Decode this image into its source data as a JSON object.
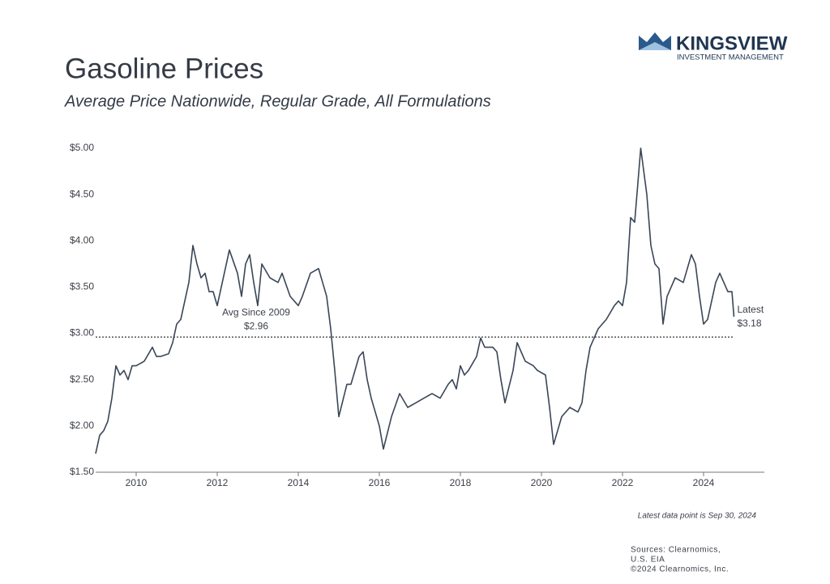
{
  "logo": {
    "name": "KINGSVIEW",
    "tagline": "INVESTMENT MANAGEMENT"
  },
  "chart_data": {
    "type": "line",
    "title": "Gasoline Prices",
    "subtitle": "Average Price Nationwide, Regular Grade, All Formulations",
    "color": "#3a4657",
    "x": [
      2009.0,
      2009.1,
      2009.2,
      2009.3,
      2009.4,
      2009.5,
      2009.6,
      2009.7,
      2009.8,
      2009.9,
      2010.0,
      2010.2,
      2010.4,
      2010.5,
      2010.6,
      2010.8,
      2010.9,
      2011.0,
      2011.1,
      2011.3,
      2011.4,
      2011.5,
      2011.6,
      2011.7,
      2011.8,
      2011.9,
      2012.0,
      2012.1,
      2012.3,
      2012.5,
      2012.6,
      2012.7,
      2012.8,
      2012.9,
      2013.0,
      2013.1,
      2013.3,
      2013.5,
      2013.6,
      2013.8,
      2014.0,
      2014.1,
      2014.3,
      2014.5,
      2014.6,
      2014.7,
      2014.8,
      2014.9,
      2015.0,
      2015.2,
      2015.3,
      2015.5,
      2015.6,
      2015.7,
      2015.8,
      2016.0,
      2016.1,
      2016.3,
      2016.5,
      2016.7,
      2016.9,
      2017.1,
      2017.3,
      2017.5,
      2017.7,
      2017.8,
      2017.9,
      2018.0,
      2018.1,
      2018.2,
      2018.4,
      2018.5,
      2018.6,
      2018.8,
      2018.9,
      2019.0,
      2019.1,
      2019.3,
      2019.4,
      2019.6,
      2019.8,
      2019.9,
      2020.1,
      2020.2,
      2020.3,
      2020.5,
      2020.7,
      2020.9,
      2021.0,
      2021.1,
      2021.2,
      2021.4,
      2021.6,
      2021.8,
      2021.9,
      2022.0,
      2022.1,
      2022.2,
      2022.3,
      2022.45,
      2022.6,
      2022.7,
      2022.8,
      2022.9,
      2023.0,
      2023.1,
      2023.2,
      2023.3,
      2023.5,
      2023.7,
      2023.8,
      2023.9,
      2024.0,
      2024.1,
      2024.3,
      2024.4,
      2024.6,
      2024.7,
      2024.75
    ],
    "values": [
      1.7,
      1.9,
      1.95,
      2.05,
      2.3,
      2.65,
      2.55,
      2.6,
      2.5,
      2.65,
      2.65,
      2.7,
      2.85,
      2.75,
      2.75,
      2.78,
      2.9,
      3.1,
      3.15,
      3.55,
      3.95,
      3.75,
      3.6,
      3.65,
      3.45,
      3.45,
      3.3,
      3.5,
      3.9,
      3.65,
      3.4,
      3.75,
      3.85,
      3.55,
      3.3,
      3.75,
      3.6,
      3.55,
      3.65,
      3.4,
      3.3,
      3.4,
      3.65,
      3.7,
      3.55,
      3.4,
      3.05,
      2.6,
      2.1,
      2.45,
      2.45,
      2.75,
      2.8,
      2.5,
      2.3,
      2.0,
      1.75,
      2.1,
      2.35,
      2.2,
      2.25,
      2.3,
      2.35,
      2.3,
      2.45,
      2.5,
      2.4,
      2.65,
      2.55,
      2.6,
      2.75,
      2.95,
      2.85,
      2.85,
      2.8,
      2.5,
      2.25,
      2.6,
      2.9,
      2.7,
      2.65,
      2.6,
      2.55,
      2.2,
      1.8,
      2.1,
      2.2,
      2.15,
      2.25,
      2.6,
      2.85,
      3.05,
      3.15,
      3.3,
      3.35,
      3.3,
      3.55,
      4.25,
      4.2,
      5.0,
      4.5,
      3.95,
      3.75,
      3.7,
      3.1,
      3.4,
      3.5,
      3.6,
      3.55,
      3.85,
      3.75,
      3.4,
      3.1,
      3.15,
      3.55,
      3.65,
      3.45,
      3.45,
      3.18
    ],
    "xlim": [
      2009,
      2025.5
    ],
    "xticks": [
      2010,
      2012,
      2014,
      2016,
      2018,
      2020,
      2022,
      2024
    ],
    "ylim": [
      1.5,
      5.0
    ],
    "yticks": [
      {
        "value": 1.5,
        "label": "$1.50"
      },
      {
        "value": 2.0,
        "label": "$2.00"
      },
      {
        "value": 2.5,
        "label": "$2.50"
      },
      {
        "value": 3.0,
        "label": "$3.00"
      },
      {
        "value": 3.5,
        "label": "$3.50"
      },
      {
        "value": 4.0,
        "label": "$4.00"
      },
      {
        "value": 4.5,
        "label": "$4.50"
      },
      {
        "value": 5.0,
        "label": "$5.00"
      }
    ],
    "grid": false,
    "average": {
      "label": "Avg Since 2009",
      "value": 2.96,
      "value_label": "$2.96"
    },
    "latest": {
      "label": "Latest",
      "value": 3.18,
      "value_label": "$3.18"
    },
    "note": "Latest data point is Sep 30, 2024",
    "sources": [
      "Sources: Clearnomics,",
      "U.S. EIA",
      "©2024 Clearnomics, Inc."
    ]
  }
}
